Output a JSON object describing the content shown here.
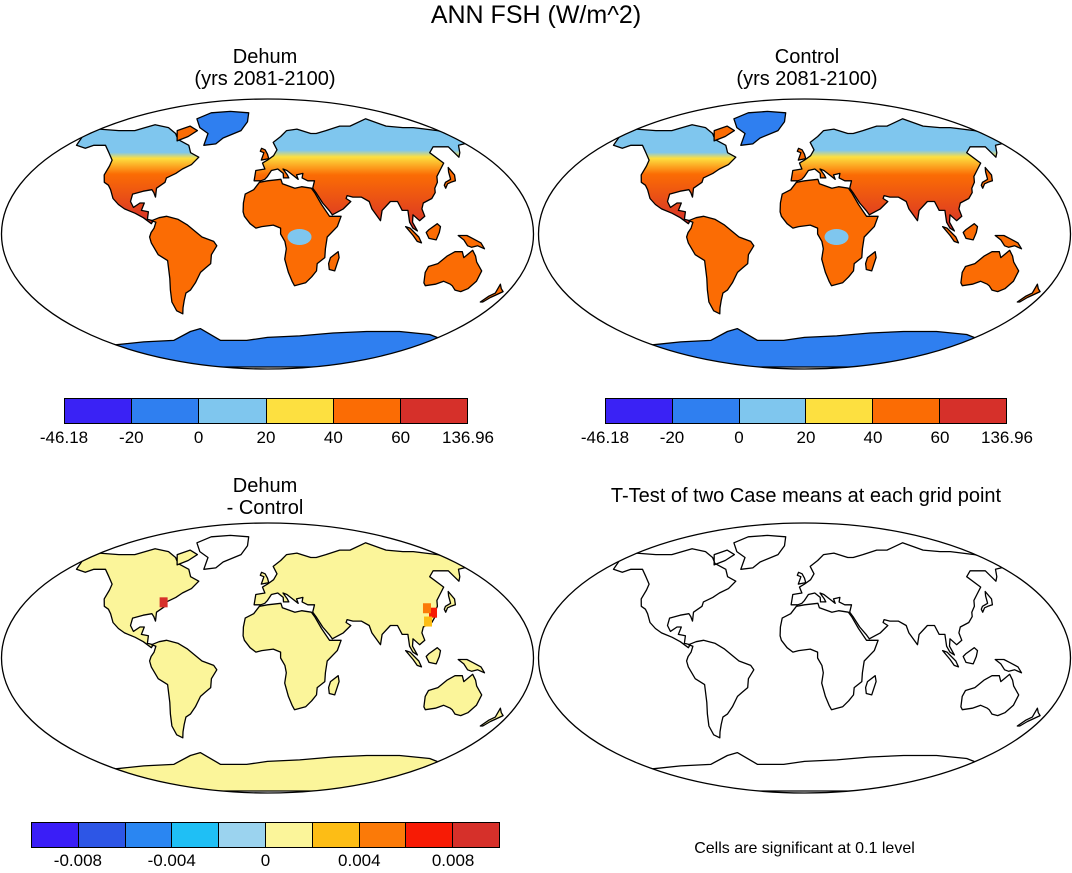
{
  "title": "ANN FSH (W/m^2)",
  "panels": [
    {
      "id": "dehum",
      "title_line1": "Dehum",
      "title_line2": "(yrs 2081-2100)",
      "fill_mode": "absolute"
    },
    {
      "id": "control",
      "title_line1": "Control",
      "title_line2": "(yrs 2081-2100)",
      "fill_mode": "absolute"
    },
    {
      "id": "diff",
      "title_line1": "Dehum",
      "title_line2": "- Control",
      "fill_mode": "difference"
    },
    {
      "id": "ttest",
      "title_line1": "T-Test of two Case means at each grid point",
      "fill_mode": "none"
    }
  ],
  "colorbar_abs": {
    "colors": [
      "#3a22f5",
      "#2f7ff0",
      "#7fc6ee",
      "#fde040",
      "#fb6c04",
      "#d6302a"
    ],
    "ticks": [
      "-46.18",
      "-20",
      "0",
      "20",
      "40",
      "60",
      "136.96"
    ]
  },
  "colorbar_diff": {
    "colors": [
      "#3a1ef7",
      "#2d56e6",
      "#2a86f2",
      "#1fbff5",
      "#9bd3ef",
      "#fbf59a",
      "#fdbd15",
      "#fb7a08",
      "#f71b05",
      "#d6302a"
    ],
    "ticks": [
      "-0.008",
      "-0.004",
      "0",
      "0.004",
      "0.008"
    ]
  },
  "note": "Cells are significant at 0.1 level"
}
